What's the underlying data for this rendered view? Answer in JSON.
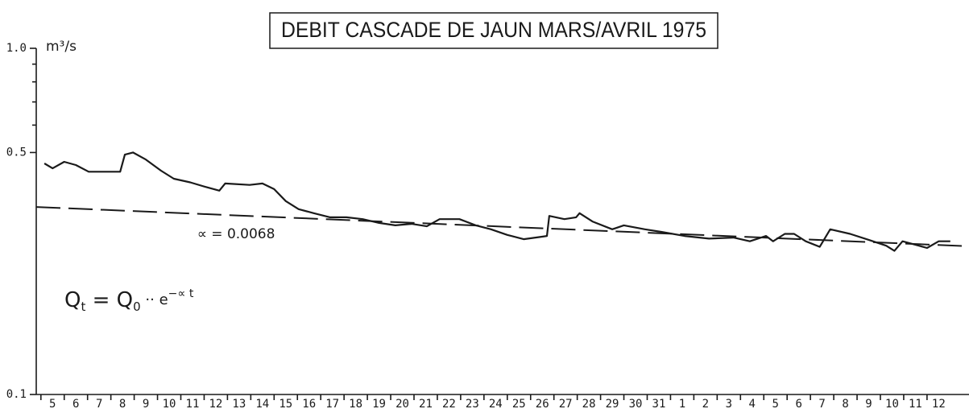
{
  "chart_data": {
    "type": "line",
    "title": "DEBIT CASCADE DE JAUN MARS/AVRIL 1975",
    "y_label": "m³/s",
    "log_y": true,
    "xlim": [
      4.3,
      44.3
    ],
    "xticks": [
      5,
      6,
      7,
      8,
      9,
      10,
      11,
      12,
      13,
      14,
      15,
      16,
      17,
      18,
      19,
      20,
      21,
      22,
      23,
      24,
      25,
      26,
      27,
      28,
      29,
      30,
      31,
      {
        "value": 32,
        "label": "1"
      },
      {
        "value": 33,
        "label": "2"
      },
      {
        "value": 34,
        "label": "3"
      },
      {
        "value": 35,
        "label": "4"
      },
      {
        "value": 36,
        "label": "5"
      },
      {
        "value": 37,
        "label": "6"
      },
      {
        "value": 38,
        "label": "7"
      },
      {
        "value": 39,
        "label": "8"
      },
      {
        "value": 40,
        "label": "9"
      },
      {
        "value": 41,
        "label": "10"
      },
      {
        "value": 42,
        "label": "11"
      },
      {
        "value": 43,
        "label": "12"
      }
    ],
    "ylim": [
      0.1,
      1.0
    ],
    "yticks": [
      {
        "value": 1.0,
        "label": "1.0"
      },
      {
        "value": 0.5,
        "label": "0.5"
      },
      {
        "value": 0.1,
        "label": "0.1"
      }
    ],
    "yminor": [
      0.6,
      0.7,
      0.8,
      0.9
    ],
    "series": [
      {
        "color": "#1a1a1a",
        "dash": false,
        "x": [
          4.65,
          5,
          5.5,
          6,
          6.55,
          7.9,
          8.1,
          8.45,
          9,
          9.65,
          10.2,
          10.9,
          11.55,
          12.15,
          12.4,
          13.45,
          14,
          14.5,
          15,
          15.55,
          16.2,
          16.9,
          17.6,
          18.3,
          19,
          19.7,
          20.4,
          21.05,
          21.6,
          22.45,
          23.15,
          23.8,
          24.5,
          25.2,
          25.9,
          26.2,
          26.3,
          26.95,
          27.45,
          27.6,
          28.15,
          29,
          29.5,
          30.4,
          31.1,
          32.1,
          33.15,
          34.2,
          34.9,
          35.6,
          35.9,
          36.4,
          36.8,
          37.3,
          37.9,
          38.35,
          39.2,
          40.05,
          40.75,
          41.1,
          41.45,
          42.15,
          42.5,
          43,
          43.5
        ],
        "values": [
          0.465,
          0.45,
          0.47,
          0.46,
          0.44,
          0.44,
          0.493,
          0.5,
          0.477,
          0.443,
          0.42,
          0.41,
          0.398,
          0.388,
          0.407,
          0.403,
          0.407,
          0.392,
          0.362,
          0.343,
          0.334,
          0.325,
          0.325,
          0.321,
          0.313,
          0.308,
          0.311,
          0.306,
          0.321,
          0.321,
          0.308,
          0.3,
          0.289,
          0.281,
          0.285,
          0.287,
          0.328,
          0.321,
          0.325,
          0.334,
          0.316,
          0.3,
          0.308,
          0.3,
          0.295,
          0.287,
          0.282,
          0.284,
          0.277,
          0.287,
          0.277,
          0.291,
          0.291,
          0.277,
          0.267,
          0.3,
          0.291,
          0.279,
          0.269,
          0.26,
          0.277,
          0.269,
          0.265,
          0.277,
          0.277
        ]
      },
      {
        "color": "#1a1a1a",
        "dash": true,
        "x": [
          4.3,
          44.3
        ],
        "values": [
          0.348,
          0.268
        ]
      }
    ],
    "annotations": [
      {
        "text": "∝ = 0.0068",
        "x": 11.2,
        "y": 0.29
      }
    ],
    "formula": [
      "Q",
      "t",
      " = Q",
      "0",
      " ·· e",
      "−∝ t"
    ]
  }
}
